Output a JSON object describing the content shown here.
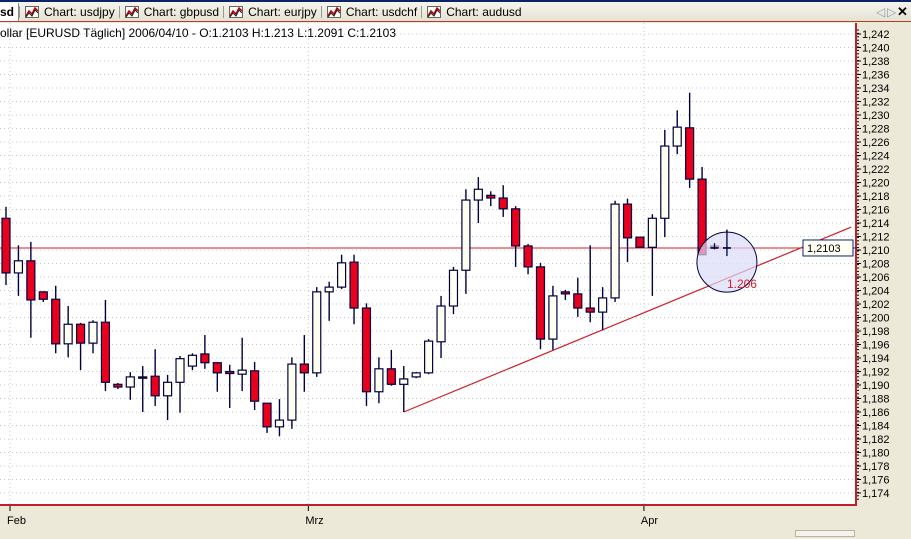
{
  "tabs": [
    {
      "label": "sd",
      "active": true
    },
    {
      "label": "Chart: usdjpy"
    },
    {
      "label": "Chart: gbpusd"
    },
    {
      "label": "Chart: eurjpy"
    },
    {
      "label": "Chart: usdchf"
    },
    {
      "label": "Chart: audusd"
    }
  ],
  "tab_icon": "chart-line-icon",
  "nav": {
    "prev": "◁",
    "next": "▷",
    "close": "✕"
  },
  "title": "ollar [EURUSD  Täglich] 2006/04/10 - O:1.2103 H:1.213 L:1.2091 C:1.2103",
  "colors": {
    "bear": "#e8001c",
    "bull": "#fffff0",
    "outline": "#000040",
    "line": "#d0202a",
    "circle_fill": "#dcdcf8"
  },
  "chart_data": {
    "type": "candlestick",
    "symbol": "EURUSD",
    "timeframe": "Täglich",
    "ylim": [
      1.172,
      1.244
    ],
    "y_ticks": [
      "1,174",
      "1,176",
      "1,178",
      "1,180",
      "1,182",
      "1,184",
      "1,186",
      "1,188",
      "1,190",
      "1,192",
      "1,194",
      "1,196",
      "1,198",
      "1,200",
      "1,202",
      "1,204",
      "1,206",
      "1,208",
      "1,210",
      "1,212",
      "1,214",
      "1,216",
      "1,218",
      "1,220",
      "1,222",
      "1,224",
      "1,226",
      "1,228",
      "1,230",
      "1,232",
      "1,234",
      "1,236",
      "1,238",
      "1,240",
      "1,242"
    ],
    "x_ticks": [
      {
        "label": "Feb",
        "index": 0
      },
      {
        "label": "Mrz",
        "index": 24
      },
      {
        "label": "Apr",
        "index": 51
      }
    ],
    "grid": true,
    "current_price": 1.2103,
    "current_price_label": "1,2103",
    "ohlc": [
      [
        1.2147,
        1.2164,
        1.2048,
        1.2066
      ],
      [
        1.2066,
        1.2107,
        1.2032,
        1.2084
      ],
      [
        1.2084,
        1.2112,
        1.197,
        1.2026
      ],
      [
        1.2038,
        1.2039,
        1.2023,
        1.2027
      ],
      [
        1.2027,
        1.2047,
        1.1947,
        1.1961
      ],
      [
        1.1961,
        1.2017,
        1.1941,
        1.199
      ],
      [
        1.199,
        1.1992,
        1.1922,
        1.1962
      ],
      [
        1.1962,
        1.1996,
        1.1947,
        1.1993
      ],
      [
        1.1993,
        1.2026,
        1.1891,
        1.1904
      ],
      [
        1.1901,
        1.1903,
        1.1894,
        1.1897
      ],
      [
        1.1897,
        1.1919,
        1.1878,
        1.1912
      ],
      [
        1.1912,
        1.1928,
        1.186,
        1.191
      ],
      [
        1.1913,
        1.1953,
        1.1869,
        1.1884
      ],
      [
        1.1884,
        1.1915,
        1.1848,
        1.1904
      ],
      [
        1.1904,
        1.1943,
        1.1859,
        1.1939
      ],
      [
        1.1928,
        1.1947,
        1.1922,
        1.1944
      ],
      [
        1.1946,
        1.1974,
        1.1924,
        1.1933
      ],
      [
        1.1933,
        1.1934,
        1.189,
        1.1918
      ],
      [
        1.192,
        1.193,
        1.1866,
        1.1917
      ],
      [
        1.1916,
        1.197,
        1.1891,
        1.1922
      ],
      [
        1.1921,
        1.1934,
        1.1863,
        1.1876
      ],
      [
        1.1873,
        1.1873,
        1.1829,
        1.1838
      ],
      [
        1.1838,
        1.1879,
        1.1824,
        1.1848
      ],
      [
        1.1848,
        1.1941,
        1.1835,
        1.1931
      ],
      [
        1.1931,
        1.1974,
        1.189,
        1.1918
      ],
      [
        1.1918,
        1.2045,
        1.1912,
        1.2038
      ],
      [
        1.2038,
        1.2053,
        1.1995,
        1.2045
      ],
      [
        1.2045,
        1.2093,
        1.2042,
        1.2081
      ],
      [
        1.2082,
        1.2093,
        1.199,
        1.2014
      ],
      [
        1.2014,
        1.2021,
        1.1869,
        1.189
      ],
      [
        1.189,
        1.1941,
        1.1873,
        1.1924
      ],
      [
        1.1924,
        1.1952,
        1.1899,
        1.1901
      ],
      [
        1.1901,
        1.1928,
        1.186,
        1.1909
      ],
      [
        1.1912,
        1.1919,
        1.191,
        1.1918
      ],
      [
        1.1918,
        1.1968,
        1.1916,
        1.1965
      ],
      [
        1.1964,
        1.2032,
        1.194,
        1.2017
      ],
      [
        1.2017,
        1.2075,
        1.2005,
        1.207
      ],
      [
        1.207,
        1.219,
        1.2035,
        1.2174
      ],
      [
        1.2174,
        1.2208,
        1.214,
        1.219
      ],
      [
        1.2181,
        1.2187,
        1.2165,
        1.2177
      ],
      [
        1.2177,
        1.2196,
        1.2149,
        1.2161
      ],
      [
        1.2161,
        1.2165,
        1.2075,
        1.2106
      ],
      [
        1.2106,
        1.2109,
        1.2064,
        1.2075
      ],
      [
        1.2075,
        1.2081,
        1.1953,
        1.1968
      ],
      [
        1.1968,
        1.2047,
        1.1952,
        1.2032
      ],
      [
        1.2038,
        1.2041,
        1.2026,
        1.2035
      ],
      [
        1.2035,
        1.2059,
        1.2001,
        1.2014
      ],
      [
        1.2014,
        1.2107,
        1.1993,
        1.2008
      ],
      [
        1.2008,
        1.2045,
        1.1981,
        1.2029
      ],
      [
        1.2029,
        1.2173,
        1.2023,
        1.2168
      ],
      [
        1.2168,
        1.2176,
        1.2082,
        1.2118
      ],
      [
        1.2119,
        1.2119,
        1.2104,
        1.2104
      ],
      [
        1.2104,
        1.2153,
        1.2032,
        1.2147
      ],
      [
        1.2147,
        1.2278,
        1.2119,
        1.2254
      ],
      [
        1.2254,
        1.2307,
        1.2242,
        1.2282
      ],
      [
        1.2281,
        1.2333,
        1.2192,
        1.2205
      ],
      [
        1.2205,
        1.2223,
        1.2093,
        1.2093
      ],
      [
        1.2106,
        1.211,
        1.2101,
        1.2103
      ],
      [
        1.2103,
        1.213,
        1.2091,
        1.2103
      ]
    ],
    "trendline": {
      "start": {
        "index": 32,
        "price": 1.186
      },
      "end": {
        "index": 68,
        "price": 1.2134
      }
    },
    "circle_annotation": {
      "index": 58,
      "price": 1.2082,
      "label": "1.206"
    }
  }
}
